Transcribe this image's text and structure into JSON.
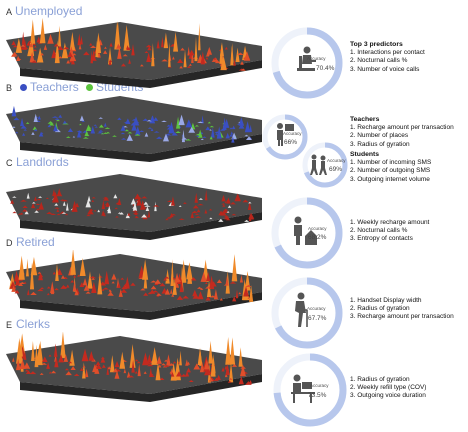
{
  "panels": [
    {
      "letter": "A",
      "title": "Unemployed",
      "accuracy_label": "Accuracy",
      "accuracy": "70.4%",
      "accuracy_value": 0.704,
      "groups": [
        {
          "heading": "Top 3 predictors",
          "items": [
            "1. Interactions per contact",
            "2. Nocturnal calls %",
            "3. Number of voice calls"
          ]
        }
      ],
      "icon": "unemployed-person-icon"
    },
    {
      "letter": "B",
      "title": "",
      "legend": [
        {
          "label": "Teachers",
          "color": "#3a4fc2"
        },
        {
          "label": "Students",
          "color": "#5cc43e"
        }
      ],
      "gauges": [
        {
          "accuracy_label": "Accuracy",
          "accuracy": "66%",
          "accuracy_value": 0.66,
          "icon": "teacher-icon"
        },
        {
          "accuracy_label": "Accuracy",
          "accuracy": "69%",
          "accuracy_value": 0.69,
          "icon": "students-icon"
        }
      ],
      "groups": [
        {
          "heading": "Teachers",
          "items": [
            "1. Recharge amount per transaction",
            "2. Number of places",
            "3. Radius of gyration"
          ]
        },
        {
          "heading": "Students",
          "items": [
            "1. Number of incoming SMS",
            "2. Number of outgoing SMS",
            "3. Outgoing internet volume"
          ]
        }
      ]
    },
    {
      "letter": "C",
      "title": "Landlords",
      "accuracy_label": "Accuracy",
      "accuracy": "68.2%",
      "accuracy_value": 0.682,
      "groups": [
        {
          "heading": "",
          "items": [
            "1. Weekly recharge amount",
            "2. Nocturnal calls %",
            "3. Entropy of contacts"
          ]
        }
      ],
      "icon": "landlord-icon"
    },
    {
      "letter": "D",
      "title": "Retired",
      "accuracy_label": "Accuracy",
      "accuracy": "67.7%",
      "accuracy_value": 0.677,
      "groups": [
        {
          "heading": "",
          "items": [
            "1. Handset Display width",
            "2. Radius of gyration",
            "3. Recharge amount per transaction"
          ]
        }
      ],
      "icon": "retired-person-icon"
    },
    {
      "letter": "E",
      "title": "Clerks",
      "accuracy_label": "Accuracy",
      "accuracy": "73.5%",
      "accuracy_value": 0.735,
      "groups": [
        {
          "heading": "",
          "items": [
            "1. Radius of gyration",
            "2. Weekly refill type (COV)",
            "3. Outgoing voice duration"
          ]
        }
      ],
      "icon": "clerk-icon"
    }
  ],
  "colors": {
    "title": "#8aa0d6",
    "gauge_ring": "#c5d2ee",
    "gauge_fill": "#b7c7ec",
    "map_dark": "#3a3a3a",
    "peak_orange": "#f08a2a",
    "peak_red": "#c42a1f"
  }
}
